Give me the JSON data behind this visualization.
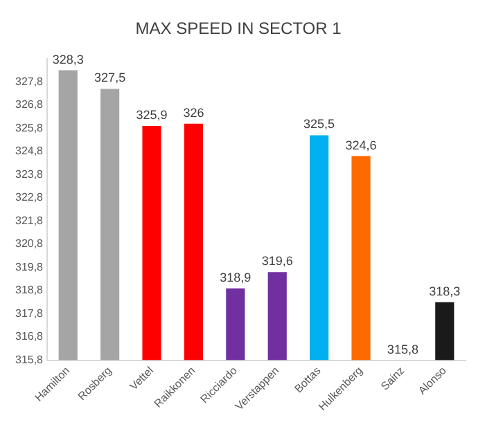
{
  "chart_data": {
    "type": "bar",
    "title": "MAX SPEED IN SECTOR 1",
    "categories": [
      "Hamilton",
      "Rosberg",
      "Vettel",
      "Raikkonen",
      "Ricciardo",
      "Verstappen",
      "Bottas",
      "Hulkenberg",
      "Sainz",
      "Alonso"
    ],
    "values": [
      328.3,
      327.5,
      325.9,
      326,
      318.9,
      319.6,
      325.5,
      324.6,
      315.8,
      318.3
    ],
    "value_labels": [
      "328,3",
      "327,5",
      "325,9",
      "326",
      "318,9",
      "319,6",
      "325,5",
      "324,6",
      "315,8",
      "318,3"
    ],
    "colors": [
      "#a5a5a5",
      "#a5a5a5",
      "#ff0000",
      "#ff0000",
      "#7030a0",
      "#7030a0",
      "#00b0f0",
      "#ff6a00",
      "#1f5fbf",
      "#1a1a1a"
    ],
    "ylim": [
      315.8,
      328.8
    ],
    "yticks": [
      {
        "value": 315.8,
        "label": "315,8"
      },
      {
        "value": 316.8,
        "label": "316,8"
      },
      {
        "value": 317.8,
        "label": "317,8"
      },
      {
        "value": 318.8,
        "label": "318,8"
      },
      {
        "value": 319.8,
        "label": "319,8"
      },
      {
        "value": 320.8,
        "label": "320,8"
      },
      {
        "value": 321.8,
        "label": "321,8"
      },
      {
        "value": 322.8,
        "label": "322,8"
      },
      {
        "value": 323.8,
        "label": "323,8"
      },
      {
        "value": 324.8,
        "label": "324,8"
      },
      {
        "value": 325.8,
        "label": "325,8"
      },
      {
        "value": 326.8,
        "label": "326,8"
      },
      {
        "value": 327.8,
        "label": "327,8"
      }
    ],
    "grid": false,
    "legend": false
  }
}
